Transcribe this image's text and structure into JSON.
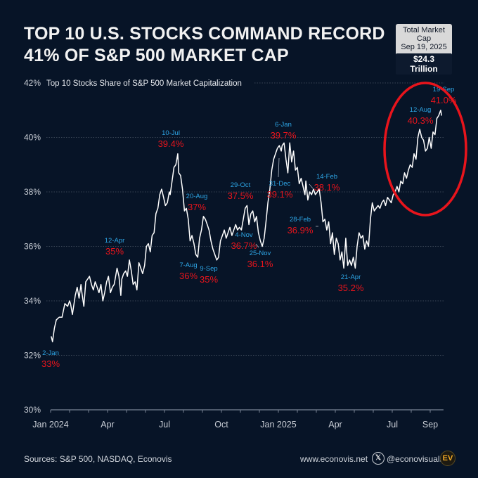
{
  "title_line1": "TOP 10 U.S. STOCKS COMMAND RECORD",
  "title_line2": "41% OF S&P 500 MARKET CAP",
  "market_cap_box": {
    "label": "Total Market Cap",
    "date": "Sep 19, 2025",
    "value": "$24.3 Trillion"
  },
  "footer": {
    "sources": "Sources: S&P 500, NASDAQ, Econovis",
    "website": "www.econovis.net",
    "x_icon": "x-logo-icon",
    "handle": "@econovisuals",
    "logo": "EV"
  },
  "colors": {
    "background": "#071427",
    "line": "#ffffff",
    "date_label": "#2ea6e6",
    "value_label": "#e8141c",
    "highlight_ellipse": "#e8141c",
    "grid": "#4a5566",
    "axis_text": "#c9ced6"
  },
  "chart_data": {
    "type": "line",
    "title": "Top 10 Stocks Share of S&P 500 Market Capitalization",
    "xlabel": "",
    "ylabel": "",
    "ylim": [
      30,
      42
    ],
    "yticks": [
      30,
      32,
      34,
      36,
      38,
      40,
      42
    ],
    "ytick_labels": [
      "30%",
      "32%",
      "34%",
      "36%",
      "38%",
      "40%",
      "42%"
    ],
    "x_unit": "months since Jan 1, 2024",
    "xlim": [
      0,
      21
    ],
    "xticks": [
      0,
      3,
      6,
      9,
      12,
      15,
      18,
      20
    ],
    "xtick_labels": [
      "Jan 2024",
      "Apr",
      "Jul",
      "Oct",
      "Jan 2025",
      "Apr",
      "Jul",
      "Sep"
    ],
    "minor_ticks_monthly": true,
    "grid": "horizontal dotted",
    "series": [
      {
        "name": "Top 10 share (%)",
        "x": [
          0.03,
          0.1,
          0.2,
          0.3,
          0.45,
          0.6,
          0.75,
          0.9,
          1.0,
          1.05,
          1.15,
          1.3,
          1.4,
          1.5,
          1.6,
          1.65,
          1.75,
          1.85,
          1.95,
          2.05,
          2.15,
          2.25,
          2.35,
          2.45,
          2.55,
          2.65,
          2.75,
          2.85,
          2.95,
          3.05,
          3.15,
          3.25,
          3.35,
          3.4,
          3.5,
          3.6,
          3.7,
          3.75,
          3.85,
          3.95,
          4.05,
          4.15,
          4.25,
          4.35,
          4.45,
          4.55,
          4.65,
          4.75,
          4.85,
          4.95,
          5.05,
          5.15,
          5.25,
          5.35,
          5.45,
          5.55,
          5.65,
          5.75,
          5.85,
          5.95,
          6.05,
          6.15,
          6.25,
          6.3,
          6.4,
          6.5,
          6.6,
          6.7,
          6.75,
          6.85,
          6.95,
          7.05,
          7.15,
          7.25,
          7.35,
          7.45,
          7.55,
          7.65,
          7.75,
          7.85,
          7.95,
          8.05,
          8.15,
          8.25,
          8.35,
          8.45,
          8.55,
          8.65,
          8.75,
          8.85,
          8.95,
          9.05,
          9.15,
          9.25,
          9.35,
          9.45,
          9.55,
          9.65,
          9.75,
          9.85,
          9.95,
          10.05,
          10.15,
          10.25,
          10.35,
          10.45,
          10.55,
          10.65,
          10.75,
          10.85,
          10.95,
          11.05,
          11.15,
          11.25,
          11.35,
          11.45,
          11.55,
          11.65,
          11.75,
          11.85,
          11.95,
          12.05,
          12.15,
          12.2,
          12.3,
          12.4,
          12.5,
          12.6,
          12.7,
          12.8,
          12.9,
          13.0,
          13.1,
          13.2,
          13.3,
          13.4,
          13.45,
          13.55,
          13.65,
          13.75,
          13.85,
          13.95,
          14.05,
          14.15,
          14.25,
          14.35,
          14.45,
          14.55,
          14.65,
          14.75,
          14.85,
          14.95,
          15.05,
          15.15,
          15.25,
          15.35,
          15.45,
          15.55,
          15.65,
          15.75,
          15.85,
          15.95,
          16.05,
          16.15,
          16.25,
          16.35,
          16.45,
          16.55,
          16.65,
          16.75,
          16.85,
          16.95,
          17.05,
          17.15,
          17.25,
          17.35,
          17.45,
          17.55,
          17.65,
          17.75,
          17.85,
          17.95,
          18.05,
          18.15,
          18.25,
          18.35,
          18.45,
          18.55,
          18.65,
          18.75,
          18.85,
          18.95,
          19.05,
          19.15,
          19.25,
          19.35,
          19.45,
          19.55,
          19.65,
          19.75,
          19.85,
          19.95,
          20.05,
          20.15,
          20.25,
          20.35,
          20.45,
          20.55,
          20.6
        ],
        "values": [
          32.7,
          32.5,
          33.0,
          33.3,
          33.4,
          33.4,
          33.9,
          33.8,
          34.0,
          33.9,
          33.5,
          34.2,
          34.5,
          34.1,
          34.6,
          34.3,
          33.8,
          34.7,
          34.8,
          34.9,
          34.6,
          34.4,
          34.7,
          34.5,
          34.3,
          34.6,
          34.0,
          34.3,
          34.7,
          34.9,
          34.3,
          34.5,
          34.6,
          34.8,
          35.2,
          34.9,
          34.2,
          34.8,
          35.0,
          35.1,
          34.9,
          35.5,
          35.1,
          34.6,
          34.7,
          34.4,
          35.4,
          35.2,
          35.0,
          35.3,
          36.0,
          36.1,
          35.8,
          36.4,
          36.5,
          37.2,
          37.4,
          37.9,
          38.1,
          37.8,
          37.5,
          37.6,
          38.0,
          37.9,
          38.4,
          38.9,
          39.0,
          39.4,
          38.7,
          38.6,
          38.1,
          37.3,
          37.4,
          37.0,
          36.2,
          36.4,
          36.1,
          35.7,
          35.6,
          36.3,
          36.6,
          37.1,
          37.0,
          36.8,
          36.6,
          36.2,
          35.9,
          35.7,
          35.5,
          35.6,
          36.2,
          36.4,
          36.6,
          36.3,
          36.5,
          36.7,
          36.4,
          36.6,
          36.8,
          36.6,
          36.7,
          36.6,
          37.0,
          37.4,
          37.5,
          36.8,
          37.2,
          37.3,
          36.9,
          37.1,
          36.5,
          36.2,
          36.0,
          36.3,
          36.9,
          37.6,
          38.1,
          38.8,
          39.2,
          39.4,
          39.6,
          39.7,
          39.5,
          39.7,
          39.8,
          39.2,
          38.7,
          39.8,
          39.1,
          39.5,
          38.8,
          38.9,
          38.3,
          38.5,
          38.2,
          37.9,
          38.4,
          37.7,
          38.0,
          37.9,
          38.1,
          37.9,
          38.0,
          38.1,
          37.6,
          36.9,
          37.0,
          36.6,
          36.9,
          36.1,
          36.5,
          35.7,
          36.3,
          36.1,
          35.5,
          35.8,
          35.2,
          36.3,
          35.3,
          35.5,
          35.3,
          35.6,
          35.2,
          36.0,
          36.5,
          36.3,
          36.4,
          35.9,
          36.2,
          36.0,
          37.0,
          37.6,
          37.3,
          37.4,
          37.5,
          37.4,
          37.6,
          37.7,
          37.5,
          37.8,
          37.7,
          37.6,
          37.9,
          38.0,
          38.2,
          38.0,
          38.4,
          38.3,
          38.7,
          38.5,
          38.8,
          39.0,
          38.9,
          39.4,
          39.2,
          40.0,
          40.3,
          40.0,
          39.9,
          39.5,
          39.6,
          40.0,
          39.6,
          40.2,
          40.1,
          40.7,
          40.8,
          41.0,
          40.8
        ]
      }
    ],
    "annotations": [
      {
        "date": "2-Jan",
        "value_label": "33%",
        "x": 0.03,
        "y": 32.7
      },
      {
        "date": "12-Apr",
        "value_label": "35%",
        "x": 3.4,
        "y": 35.2
      },
      {
        "date": "10-Jul",
        "value_label": "39.4%",
        "x": 6.3,
        "y": 39.4
      },
      {
        "date": "7-Aug",
        "value_label": "36%",
        "x": 7.2,
        "y": 35.6
      },
      {
        "date": "20-Aug",
        "value_label": "37%",
        "x": 7.65,
        "y": 37.1
      },
      {
        "date": "9-Sep",
        "value_label": "35%",
        "x": 8.3,
        "y": 35.5
      },
      {
        "date": "29-Oct",
        "value_label": "37.5%",
        "x": 9.95,
        "y": 37.5
      },
      {
        "date": "4-Nov",
        "value_label": "36.7%",
        "x": 10.1,
        "y": 36.7
      },
      {
        "date": "25-Nov",
        "value_label": "36.1%",
        "x": 10.8,
        "y": 36.1
      },
      {
        "date": "31-Dec",
        "value_label": "39.1%",
        "x": 12.0,
        "y": 39.1
      },
      {
        "date": "6-Jan",
        "value_label": "39.7%",
        "x": 12.2,
        "y": 39.7
      },
      {
        "date": "14-Feb",
        "value_label": "38.1%",
        "x": 13.45,
        "y": 38.1
      },
      {
        "date": "28-Feb",
        "value_label": "36.9%",
        "x": 13.9,
        "y": 36.9
      },
      {
        "date": "21-Apr",
        "value_label": "35.2%",
        "x": 15.65,
        "y": 35.2
      },
      {
        "date": "12-Aug",
        "value_label": "40.3%",
        "x": 19.4,
        "y": 40.3
      },
      {
        "date": "19-Sep",
        "value_label": "41.0%",
        "x": 20.55,
        "y": 41.0
      }
    ],
    "highlight": {
      "shape": "ellipse",
      "color": "#e8141c",
      "region": "Jul 2025 – Sep 2025 record high"
    }
  }
}
